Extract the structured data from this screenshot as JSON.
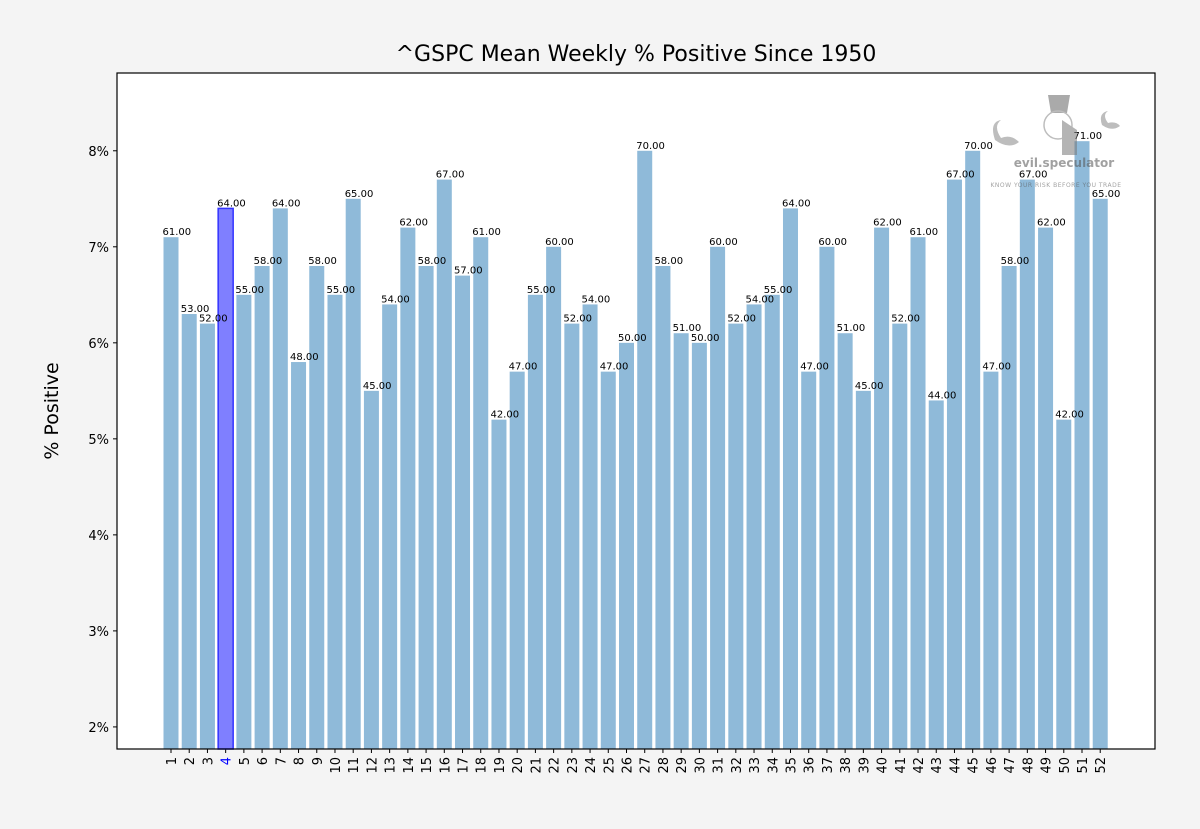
{
  "chart_data": {
    "type": "bar",
    "title": "^GSPC Mean Weekly % Positive Since 1950",
    "xlabel": "",
    "ylabel": "% Positive",
    "ylim": [
      1.77,
      8.81
    ],
    "yticks": [
      2,
      3,
      4,
      5,
      6,
      7,
      8
    ],
    "ytick_labels": [
      "2%",
      "3%",
      "4%",
      "5%",
      "6%",
      "7%",
      "8%"
    ],
    "grid": false,
    "highlight_category": "4",
    "colors": {
      "bar": "#8fbad9",
      "highlight": "#7f7fff",
      "highlight_edge": "#3333ff",
      "highlight_tick": "#0000ff"
    },
    "categories": [
      "1",
      "2",
      "3",
      "4",
      "5",
      "6",
      "7",
      "8",
      "9",
      "10",
      "11",
      "12",
      "13",
      "14",
      "15",
      "16",
      "17",
      "18",
      "19",
      "20",
      "21",
      "22",
      "23",
      "24",
      "25",
      "26",
      "27",
      "28",
      "29",
      "30",
      "31",
      "32",
      "33",
      "34",
      "35",
      "36",
      "37",
      "38",
      "39",
      "40",
      "41",
      "42",
      "43",
      "44",
      "45",
      "46",
      "47",
      "48",
      "49",
      "50",
      "51",
      "52"
    ],
    "values": [
      7.1,
      6.3,
      6.2,
      7.4,
      6.5,
      6.8,
      7.4,
      5.8,
      6.8,
      6.5,
      7.5,
      5.5,
      6.4,
      7.2,
      6.8,
      7.7,
      6.7,
      7.1,
      5.2,
      5.7,
      6.5,
      7.0,
      6.2,
      6.4,
      5.7,
      6.0,
      8.0,
      6.8,
      6.1,
      6.0,
      7.0,
      6.2,
      6.4,
      6.5,
      7.4,
      5.7,
      7.0,
      6.1,
      5.5,
      7.2,
      6.2,
      7.1,
      5.4,
      7.7,
      8.0,
      5.7,
      6.8,
      7.7,
      7.2,
      5.2,
      8.1,
      7.5
    ],
    "data_labels": [
      "61.00",
      "53.00",
      "52.00",
      "64.00",
      "55.00",
      "58.00",
      "64.00",
      "48.00",
      "58.00",
      "55.00",
      "65.00",
      "45.00",
      "54.00",
      "62.00",
      "58.00",
      "67.00",
      "57.00",
      "61.00",
      "42.00",
      "47.00",
      "55.00",
      "60.00",
      "52.00",
      "54.00",
      "47.00",
      "50.00",
      "70.00",
      "58.00",
      "51.00",
      "50.00",
      "60.00",
      "52.00",
      "54.00",
      "55.00",
      "64.00",
      "47.00",
      "60.00",
      "51.00",
      "45.00",
      "62.00",
      "52.00",
      "61.00",
      "44.00",
      "67.00",
      "70.00",
      "47.00",
      "58.00",
      "67.00",
      "62.00",
      "42.00",
      "71.00",
      "65.00"
    ]
  },
  "watermark": {
    "brand": "evil.speculator",
    "tagline": "KNOW YOUR RISK BEFORE YOU TRADE"
  }
}
